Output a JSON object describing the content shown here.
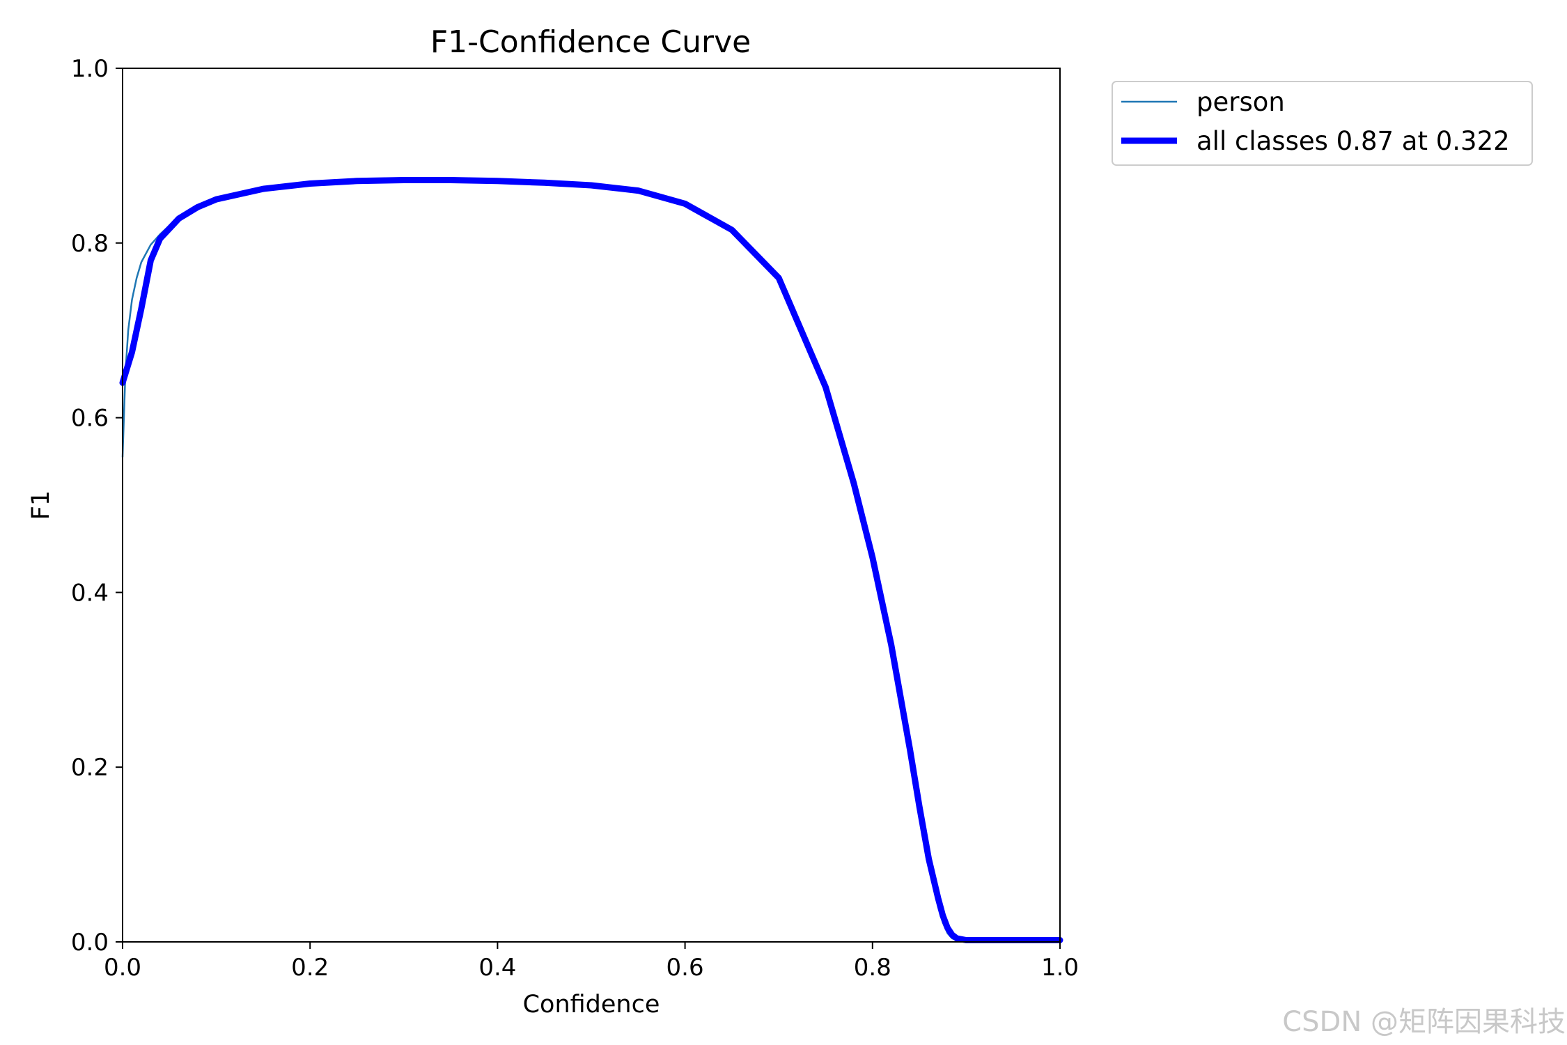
{
  "chart_data": {
    "type": "line",
    "title": "F1-Confidence Curve",
    "xlabel": "Confidence",
    "ylabel": "F1",
    "xlim": [
      0,
      1
    ],
    "ylim": [
      0,
      1
    ],
    "xticks": [
      "0.0",
      "0.2",
      "0.4",
      "0.6",
      "0.8",
      "1.0"
    ],
    "yticks": [
      "0.0",
      "0.2",
      "0.4",
      "0.6",
      "0.8",
      "1.0"
    ],
    "grid": false,
    "legend_position": "outside-top-right",
    "series": [
      {
        "name": "person",
        "color": "#1f77b4",
        "x": [
          0.0,
          0.003,
          0.006,
          0.01,
          0.015,
          0.02,
          0.03,
          0.04,
          0.06,
          0.08,
          0.1,
          0.15,
          0.2,
          0.25,
          0.3,
          0.35,
          0.4,
          0.45,
          0.5,
          0.55,
          0.6,
          0.65,
          0.7,
          0.75,
          0.78,
          0.8,
          0.82,
          0.84,
          0.85,
          0.86,
          0.87,
          0.875,
          0.88,
          0.885,
          0.89,
          0.9,
          0.92,
          0.95,
          1.0
        ],
        "y": [
          0.555,
          0.65,
          0.7,
          0.735,
          0.76,
          0.778,
          0.798,
          0.81,
          0.83,
          0.842,
          0.851,
          0.862,
          0.868,
          0.871,
          0.872,
          0.872,
          0.871,
          0.869,
          0.866,
          0.859,
          0.845,
          0.815,
          0.76,
          0.635,
          0.525,
          0.44,
          0.34,
          0.22,
          0.155,
          0.09,
          0.04,
          0.022,
          0.01,
          0.004,
          0.002,
          0.002,
          0.002,
          0.002,
          0.002
        ]
      },
      {
        "name": "all classes 0.87 at 0.322",
        "color": "#0000ff",
        "x": [
          0.0,
          0.01,
          0.02,
          0.03,
          0.04,
          0.06,
          0.08,
          0.1,
          0.15,
          0.2,
          0.25,
          0.3,
          0.35,
          0.4,
          0.45,
          0.5,
          0.55,
          0.6,
          0.65,
          0.7,
          0.75,
          0.78,
          0.8,
          0.82,
          0.84,
          0.85,
          0.86,
          0.87,
          0.875,
          0.88,
          0.885,
          0.89,
          0.9,
          0.92,
          0.95,
          1.0
        ],
        "y": [
          0.64,
          0.675,
          0.725,
          0.78,
          0.805,
          0.828,
          0.841,
          0.85,
          0.862,
          0.868,
          0.871,
          0.872,
          0.872,
          0.871,
          0.869,
          0.866,
          0.86,
          0.845,
          0.815,
          0.76,
          0.635,
          0.525,
          0.44,
          0.34,
          0.22,
          0.155,
          0.095,
          0.05,
          0.03,
          0.016,
          0.008,
          0.004,
          0.002,
          0.002,
          0.002,
          0.002
        ]
      }
    ]
  },
  "watermark": "CSDN @矩阵因果科技"
}
